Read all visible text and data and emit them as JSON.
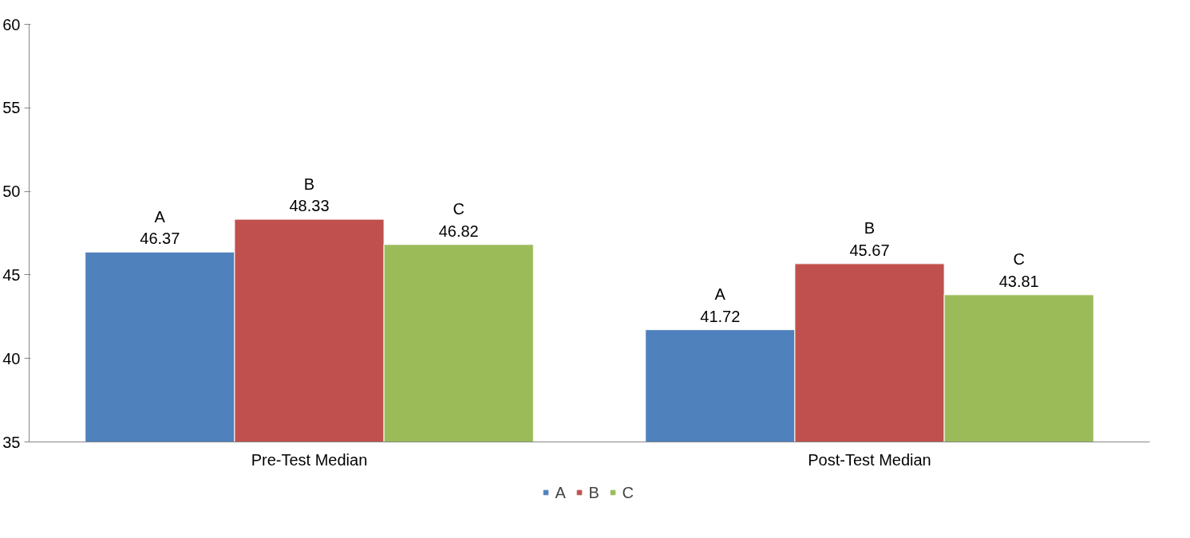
{
  "chart_data": {
    "type": "bar",
    "categories": [
      "Pre-Test Median",
      "Post-Test Median"
    ],
    "series": [
      {
        "name": "A",
        "color": "#4f81bd",
        "values": [
          46.37,
          41.72
        ]
      },
      {
        "name": "B",
        "color": "#c0504d",
        "values": [
          48.33,
          45.67
        ]
      },
      {
        "name": "C",
        "color": "#9bbb59",
        "values": [
          46.82,
          43.81
        ]
      }
    ],
    "ylim": [
      35,
      60
    ],
    "yticks": [
      35,
      40,
      45,
      50,
      55,
      60
    ],
    "grid": false,
    "legend": "bottom",
    "data_labels": true
  }
}
